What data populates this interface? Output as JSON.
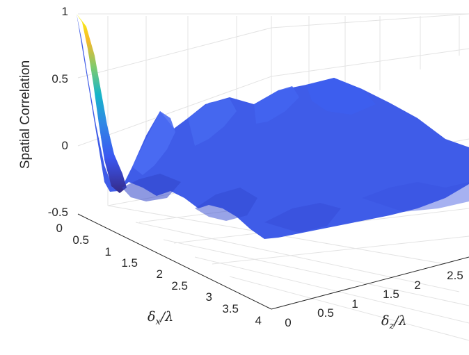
{
  "chart_data": {
    "type": "surface",
    "title": "",
    "zlabel": "Spatial Correlation",
    "xlabel": {
      "base": "δ",
      "sub": "x",
      "suffix": "/λ"
    },
    "ylabel": {
      "base": "δ",
      "sub": "z",
      "suffix": "/λ"
    },
    "x_ticks": [
      "0",
      "0.5",
      "1",
      "1.5",
      "2",
      "2.5",
      "3",
      "3.5",
      "4"
    ],
    "y_ticks": [
      "0",
      "0.5",
      "1",
      "1.5",
      "2",
      "2.5"
    ],
    "z_ticks": [
      "-0.5",
      "0",
      "0.5",
      "1"
    ],
    "xlim": [
      0,
      4
    ],
    "ylim": [
      0,
      3
    ],
    "zlim": [
      -0.5,
      1
    ],
    "colormap": "parula",
    "grid": true,
    "series": [
      {
        "delta_z_over_lambda": 0,
        "delta_x_over_lambda": [
          0,
          0.25,
          0.5,
          0.75,
          1.0,
          1.25,
          1.5,
          1.75,
          2.0,
          2.25,
          2.5,
          2.75,
          3.0,
          3.25,
          3.5,
          3.75,
          4.0
        ],
        "correlation": [
          1.0,
          0.72,
          0.1,
          -0.3,
          -0.08,
          0.15,
          -0.05,
          -0.18,
          0.02,
          0.08,
          -0.05,
          -0.12,
          0.02,
          0.08,
          -0.04,
          -0.1,
          0.03
        ]
      }
    ]
  }
}
